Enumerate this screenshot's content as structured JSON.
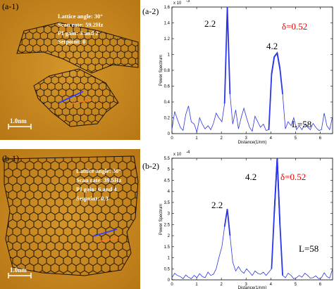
{
  "panels": {
    "a1": {
      "label": "(a-1)",
      "params": [
        "Lattice angle: 30°",
        "Scan rate: 59.2Hz",
        "PI gain: 3 and 2",
        "Setpoint: 0"
      ],
      "scalebar": "1.0nm"
    },
    "b1": {
      "label": "(b-1)",
      "params": [
        "Lattice angle: 30°",
        "Scan rate: 39.5Hz",
        "PI gain: 6 and 4",
        "Setpoint: 0.3"
      ],
      "scalebar": "1.0nm"
    }
  },
  "colors": {
    "stm_background": "#c7861e",
    "lattice": "#1c1204",
    "line_blue": "#3340ff",
    "line_orange": "#ff7a20",
    "spectrum": "#2a36e8",
    "delta_text": "#e00000"
  },
  "chart_data": [
    {
      "type": "line",
      "panel": "(a-2)",
      "exponent_label": "x 10",
      "exponent": "-3",
      "xlabel": "Distance(1/nm)",
      "ylabel": "Power Spectrum",
      "xlim": [
        0,
        6.5
      ],
      "ylim": [
        0,
        1.6
      ],
      "xticks": [
        "0",
        "1",
        "2",
        "3",
        "4",
        "5",
        "6"
      ],
      "yticks": [
        "0",
        "0.2",
        "0.4",
        "0.6",
        "0.8",
        "1",
        "1.2",
        "1.4",
        "1.6"
      ],
      "annotations": {
        "peak1": "2.2",
        "peak2": "4.2",
        "delta": "δ=0.52",
        "L": "L=58"
      },
      "series": [
        {
          "x": [
            0,
            0.11,
            0.22,
            0.34,
            0.45,
            0.56,
            0.67,
            0.78,
            0.9,
            1.01,
            1.12,
            1.23,
            1.34,
            1.46,
            1.57,
            1.68,
            1.79,
            1.9,
            2.02,
            2.13,
            2.24,
            2.35,
            2.46,
            2.58,
            2.69,
            2.8,
            2.91,
            3.02,
            3.14,
            3.25,
            3.36,
            3.47,
            3.58,
            3.7,
            3.81,
            3.92,
            4.03,
            4.14,
            4.26,
            4.37,
            4.48,
            4.59,
            4.7,
            4.82,
            4.93,
            5.04,
            5.15,
            5.26,
            5.38,
            5.49,
            5.6,
            5.71,
            5.82,
            5.94,
            6.05,
            6.16,
            6.27,
            6.38,
            6.5
          ],
          "y": [
            0.05,
            0.28,
            0.18,
            0.08,
            0.04,
            0.24,
            0.35,
            0.15,
            0.12,
            0.02,
            0.2,
            0.12,
            0.06,
            0.1,
            0.05,
            0.13,
            0.26,
            0.2,
            0.15,
            0.38,
            1.6,
            0.5,
            0.12,
            0.3,
            0.06,
            0.2,
            0.32,
            0.2,
            0.08,
            0.03,
            0.22,
            0.15,
            0.08,
            0.12,
            0.04,
            0.05,
            0.75,
            0.97,
            1.02,
            0.82,
            0.5,
            0.06,
            0.15,
            0.1,
            0.2,
            0.05,
            0.1,
            0.05,
            0.12,
            0.08,
            0.05,
            0.13,
            0.08,
            0.04,
            0.05,
            0.26,
            0.1,
            0.05,
            0.22
          ]
        }
      ]
    },
    {
      "type": "line",
      "panel": "(b-2)",
      "exponent_label": "x 10",
      "exponent": "-4",
      "xlabel": "Distance(1/nm)",
      "ylabel": "Power Spectrum",
      "xlim": [
        0,
        6.5
      ],
      "ylim": [
        0,
        5.5
      ],
      "xticks": [
        "0",
        "1",
        "2",
        "3",
        "4",
        "5",
        "6"
      ],
      "yticks": [
        "0",
        "0.5",
        "1",
        "1.5",
        "2",
        "2.5",
        "3",
        "3.5",
        "4",
        "4.5",
        "5",
        "5.5"
      ],
      "annotations": {
        "peak1": "2.2",
        "peak2": "4.2",
        "delta": "δ=0.52",
        "L": "L=58"
      },
      "series": [
        {
          "x": [
            0,
            0.11,
            0.22,
            0.34,
            0.45,
            0.56,
            0.67,
            0.78,
            0.9,
            1.01,
            1.12,
            1.23,
            1.34,
            1.46,
            1.57,
            1.68,
            1.79,
            1.9,
            2.02,
            2.13,
            2.24,
            2.35,
            2.46,
            2.58,
            2.69,
            2.8,
            2.91,
            3.02,
            3.14,
            3.25,
            3.36,
            3.47,
            3.58,
            3.7,
            3.81,
            3.92,
            4.03,
            4.14,
            4.26,
            4.37,
            4.48,
            4.59,
            4.7,
            4.82,
            4.93,
            5.04,
            5.15,
            5.26,
            5.38,
            5.49,
            5.6,
            5.71,
            5.82,
            5.94,
            6.05,
            6.16,
            6.27,
            6.38,
            6.5
          ],
          "y": [
            0.1,
            0.3,
            0.2,
            0.15,
            0.05,
            0.22,
            0.12,
            0.05,
            0.2,
            0.1,
            0.28,
            0.15,
            0.1,
            0.35,
            0.2,
            0.25,
            0.5,
            1.0,
            1.5,
            2.4,
            3.2,
            2.0,
            0.8,
            0.4,
            0.6,
            0.4,
            0.3,
            0.5,
            0.35,
            0.2,
            0.4,
            0.3,
            0.25,
            0.35,
            0.2,
            0.35,
            0.5,
            3.0,
            5.5,
            2.5,
            0.2,
            0.1,
            0.3,
            0.2,
            0.05,
            0.1,
            0.2,
            0.12,
            0.3,
            0.2,
            0.08,
            0.1,
            0.18,
            0.05,
            0.1,
            0.32,
            0.15,
            0.08,
            0.5
          ]
        }
      ]
    }
  ]
}
